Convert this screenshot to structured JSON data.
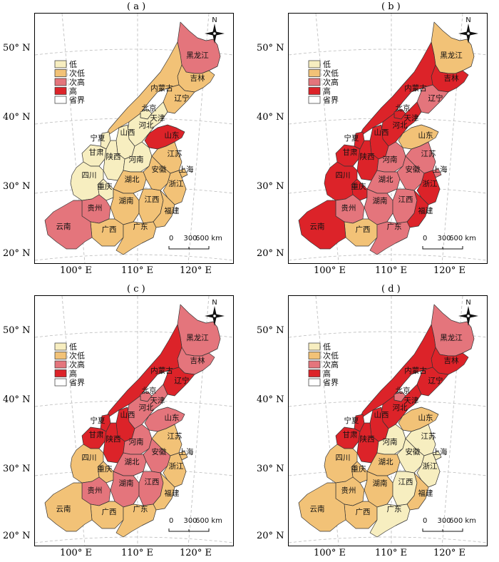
{
  "panels": [
    {
      "label": "( a )",
      "shading": {
        "heilongjiang": "次高",
        "jilin": "次低",
        "liaoning": "次低",
        "neimenggu": "次低",
        "beijing": "低",
        "tianjin": "低",
        "hebei": "低",
        "shandong": "高",
        "shanxi": "低",
        "shaanxi": "低",
        "ningxia": "低",
        "gansu": "低",
        "henan": "低",
        "jiangsu": "次低",
        "anhui": "次低",
        "shanghai": "次低",
        "zhejiang": "次低",
        "hubei": "次低",
        "hunan": "次低",
        "jiangxi": "次低",
        "fujian": "次低",
        "guangdong": "次低",
        "guangxi": "次低",
        "guizhou": "次高",
        "chongqing": "低",
        "sichuan": "低",
        "yunnan": "次高"
      }
    },
    {
      "label": "( b )",
      "shading": {
        "heilongjiang": "次低",
        "jilin": "高",
        "liaoning": "次高",
        "neimenggu": "高",
        "beijing": "高",
        "tianjin": "高",
        "hebei": "高",
        "shandong": "次低",
        "shanxi": "高",
        "shaanxi": "高",
        "ningxia": "高",
        "gansu": "高",
        "henan": "次高",
        "jiangsu": "次高",
        "anhui": "次高",
        "shanghai": "次高",
        "zhejiang": "高",
        "hubei": "次高",
        "hunan": "次高",
        "jiangxi": "次高",
        "fujian": "高",
        "guangdong": "次高",
        "guangxi": "次低",
        "guizhou": "次高",
        "chongqing": "高",
        "sichuan": "高",
        "yunnan": "高"
      }
    },
    {
      "label": "( c )",
      "shading": {
        "heilongjiang": "次高",
        "jilin": "次高",
        "liaoning": "高",
        "neimenggu": "高",
        "beijing": "次高",
        "tianjin": "次高",
        "hebei": "次高",
        "shandong": "次高",
        "shanxi": "高",
        "shaanxi": "高",
        "ningxia": "高",
        "gansu": "高",
        "henan": "次高",
        "jiangsu": "次低",
        "anhui": "次高",
        "shanghai": "次低",
        "zhejiang": "次低",
        "hubei": "次高",
        "hunan": "次高",
        "jiangxi": "次高",
        "fujian": "次低",
        "guangdong": "次低",
        "guangxi": "次低",
        "guizhou": "次高",
        "chongqing": "次低",
        "sichuan": "次低",
        "yunnan": "次低"
      }
    },
    {
      "label": "( d )",
      "shading": {
        "heilongjiang": "次高",
        "jilin": "高",
        "liaoning": "高",
        "neimenggu": "高",
        "beijing": "次高",
        "tianjin": "高",
        "hebei": "高",
        "shandong": "次低",
        "shanxi": "高",
        "shaanxi": "高",
        "ningxia": "高",
        "gansu": "高",
        "henan": "低",
        "jiangsu": "低",
        "anhui": "低",
        "shanghai": "低",
        "zhejiang": "低",
        "hubei": "次低",
        "hunan": "次低",
        "jiangxi": "低",
        "fujian": "次低",
        "guangdong": "低",
        "guangxi": "次低",
        "guizhou": "次低",
        "chongqing": "次低",
        "sichuan": "次低",
        "yunnan": "次低"
      }
    }
  ],
  "legend": {
    "low": "低",
    "sub_low": "次低",
    "sub_high": "次高",
    "high": "高",
    "boundary": "省界"
  },
  "colors": {
    "低": "#f7eec0",
    "次低": "#f2c277",
    "次高": "#e4757c",
    "高": "#dc2329",
    "boundary_legend": "#ffffff"
  },
  "provinces": {
    "heilongjiang": "黑龙江",
    "jilin": "吉林",
    "liaoning": "辽宁",
    "neimenggu": "内蒙古",
    "beijing": "北京",
    "tianjin": "天津",
    "hebei": "河北",
    "shandong": "山东",
    "shanxi": "山西",
    "shaanxi": "陕西",
    "ningxia": "宁夏",
    "gansu": "甘肃",
    "henan": "河南",
    "jiangsu": "江苏",
    "anhui": "安徽",
    "shanghai": "上海",
    "zhejiang": "浙江",
    "hubei": "湖北",
    "hunan": "湖南",
    "jiangxi": "江西",
    "fujian": "福建",
    "guangdong": "广东",
    "guangxi": "广西",
    "guizhou": "贵州",
    "chongqing": "重庆",
    "sichuan": "四川",
    "yunnan": "云南"
  },
  "axes": {
    "lat": [
      "50° N",
      "40° N",
      "30° N",
      "20° N"
    ],
    "lon": [
      "100° E",
      "110° E",
      "120° E"
    ]
  },
  "scalebar": {
    "ticks": [
      "0",
      "300",
      "600 km"
    ]
  },
  "compass": {
    "north": "N"
  }
}
